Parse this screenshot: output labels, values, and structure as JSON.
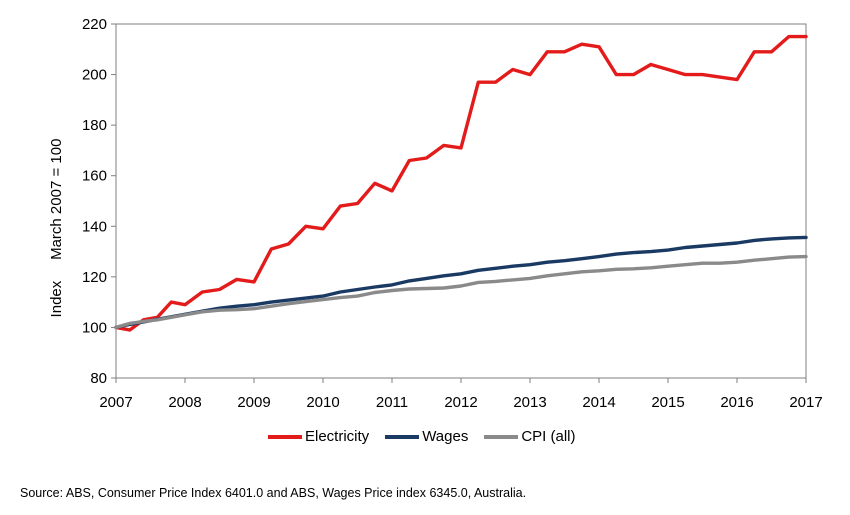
{
  "chart_data": {
    "type": "line",
    "title": "",
    "xlabel": "",
    "ylabel": "Index     March 2007 = 100",
    "xlim": [
      2007,
      2017
    ],
    "ylim": [
      80,
      220
    ],
    "yticks": [
      80,
      100,
      120,
      140,
      160,
      180,
      200,
      220
    ],
    "xticks": [
      "2007",
      "2008",
      "2009",
      "2010",
      "2011",
      "2012",
      "2013",
      "2014",
      "2015",
      "2016",
      "2017"
    ],
    "grid": false,
    "legend_position": "bottom",
    "x": [
      2007.0,
      2007.2,
      2007.4,
      2007.6,
      2007.8,
      2008.0,
      2008.25,
      2008.5,
      2008.75,
      2009.0,
      2009.25,
      2009.5,
      2009.75,
      2010.0,
      2010.25,
      2010.5,
      2010.75,
      2011.0,
      2011.25,
      2011.5,
      2011.75,
      2012.0,
      2012.25,
      2012.5,
      2012.75,
      2013.0,
      2013.25,
      2013.5,
      2013.75,
      2014.0,
      2014.25,
      2014.5,
      2014.75,
      2015.0,
      2015.25,
      2015.5,
      2015.75,
      2016.0,
      2016.25,
      2016.5,
      2016.75,
      2017.0
    ],
    "series": [
      {
        "name": "Electricity",
        "color": "#e31b1b",
        "values": [
          100,
          99,
          103,
          104,
          110,
          109,
          114,
          115,
          119,
          118,
          131,
          133,
          140,
          139,
          148,
          149,
          157,
          154,
          166,
          167,
          172,
          171,
          197,
          197,
          202,
          200,
          209,
          209,
          212,
          211,
          200,
          200,
          204,
          202,
          200,
          200,
          199,
          198,
          209,
          209,
          215,
          215
        ]
      },
      {
        "name": "Wages",
        "color": "#1a3a63",
        "values": [
          100,
          101.2,
          102.2,
          103.2,
          104.2,
          105.2,
          106.4,
          107.6,
          108.4,
          109,
          110,
          110.8,
          111.6,
          112.4,
          114,
          115,
          116,
          116.8,
          118.4,
          119.4,
          120.4,
          121.2,
          122.6,
          123.4,
          124.2,
          124.8,
          125.8,
          126.4,
          127.2,
          128,
          129,
          129.6,
          130,
          130.6,
          131.6,
          132.2,
          132.8,
          133.4,
          134.4,
          135,
          135.4,
          135.6
        ]
      },
      {
        "name": "CPI (all)",
        "color": "#8a8a8a",
        "values": [
          100,
          101.6,
          102.4,
          103,
          104,
          105,
          106.2,
          106.8,
          107,
          107.4,
          108.4,
          109.4,
          110.2,
          111,
          111.8,
          112.4,
          113.8,
          114.6,
          115.2,
          115.4,
          115.6,
          116.4,
          117.8,
          118.2,
          118.8,
          119.4,
          120.4,
          121.2,
          122,
          122.4,
          123,
          123.2,
          123.6,
          124.2,
          124.8,
          125.4,
          125.4,
          125.8,
          126.6,
          127.2,
          127.8,
          128
        ]
      }
    ]
  },
  "legend": {
    "items": [
      "Electricity",
      "Wages",
      "CPI (all)"
    ]
  },
  "footer": {
    "source": "Source: ABS, Consumer Price Index 6401.0 and ABS, Wages Price index 6345.0, Australia."
  }
}
